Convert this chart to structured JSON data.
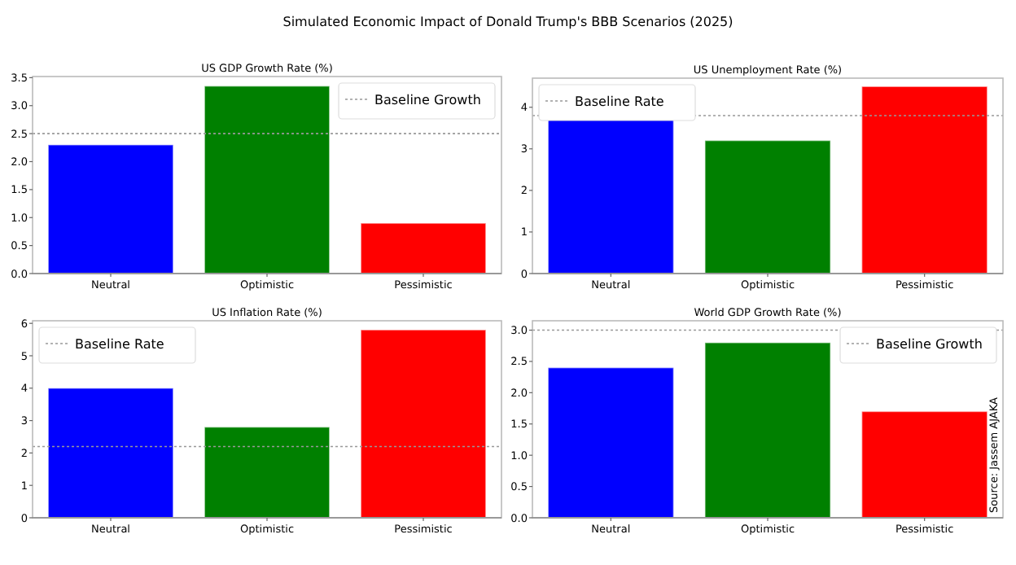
{
  "chart_data": [
    {
      "type": "bar",
      "title": "US GDP Growth Rate (%)",
      "annotations": [
        "Simulated Economic Impact of Donald Trump's BBB Scenarios (2025)"
      ],
      "categories": [
        "Neutral",
        "Optimistic",
        "Pessimistic"
      ],
      "values": [
        2.3,
        3.35,
        0.9
      ],
      "colors": [
        "#0000ff",
        "#008000",
        "#ff0000"
      ],
      "ylim": [
        0,
        3.52
      ],
      "yticks": [
        {
          "value": 0,
          "label": "0.0"
        },
        {
          "value": 0.5,
          "label": "0.5"
        },
        {
          "value": 1,
          "label": "1.0"
        },
        {
          "value": 1.5,
          "label": "1.5"
        },
        {
          "value": 2,
          "label": "2.0"
        },
        {
          "value": 2.5,
          "label": "2.5"
        },
        {
          "value": 3,
          "label": "3.0"
        },
        {
          "value": 3.5,
          "label": "3.5"
        }
      ],
      "ref_lines": [
        {
          "axis": "y",
          "value": 2.5,
          "label": "Baseline Growth",
          "color": "#999999",
          "line_style": "dotted"
        }
      ],
      "legend": "top right",
      "grid": false
    },
    {
      "type": "bar",
      "title": "US Unemployment Rate (%)",
      "categories": [
        "Neutral",
        "Optimistic",
        "Pessimistic"
      ],
      "values": [
        3.7,
        3.2,
        4.5
      ],
      "colors": [
        "#0000ff",
        "#008000",
        "#ff0000"
      ],
      "ylim": [
        0,
        4.7
      ],
      "yticks": [
        0,
        1,
        2,
        3,
        4
      ],
      "ref_lines": [
        {
          "axis": "y",
          "value": 3.8,
          "label": "Baseline Rate",
          "color": "#999999",
          "line_style": "dotted"
        }
      ],
      "legend": "top left",
      "grid": false
    },
    {
      "type": "bar",
      "title": "US Inflation Rate (%)",
      "categories": [
        "Neutral",
        "Optimistic",
        "Pessimistic"
      ],
      "values": [
        4.0,
        2.8,
        5.8
      ],
      "colors": [
        "#0000ff",
        "#008000",
        "#ff0000"
      ],
      "ylim": [
        0,
        6.08
      ],
      "yticks": [
        0,
        1,
        2,
        3,
        4,
        5,
        6
      ],
      "ref_lines": [
        {
          "axis": "y",
          "value": 2.2,
          "label": "Baseline Rate",
          "color": "#999999",
          "line_style": "dotted"
        }
      ],
      "legend": "top left",
      "grid": false
    },
    {
      "type": "bar",
      "title": "World GDP Growth Rate (%)",
      "annotations": [
        "Source: Jassem AJAKA"
      ],
      "categories": [
        "Neutral",
        "Optimistic",
        "Pessimistic"
      ],
      "values": [
        2.4,
        2.8,
        1.7
      ],
      "colors": [
        "#0000ff",
        "#008000",
        "#ff0000"
      ],
      "ylim": [
        0,
        3.15
      ],
      "yticks": [
        {
          "value": 0,
          "label": "0.0"
        },
        {
          "value": 0.5,
          "label": "0.5"
        },
        {
          "value": 1,
          "label": "1.0"
        },
        {
          "value": 1.5,
          "label": "1.5"
        },
        {
          "value": 2,
          "label": "2.0"
        },
        {
          "value": 2.5,
          "label": "2.5"
        },
        {
          "value": 3,
          "label": "3.0"
        }
      ],
      "ref_lines": [
        {
          "axis": "y",
          "value": 3.0,
          "label": "Baseline Growth",
          "color": "#999999",
          "line_style": "dotted"
        }
      ],
      "legend": "top right",
      "grid": false
    }
  ]
}
